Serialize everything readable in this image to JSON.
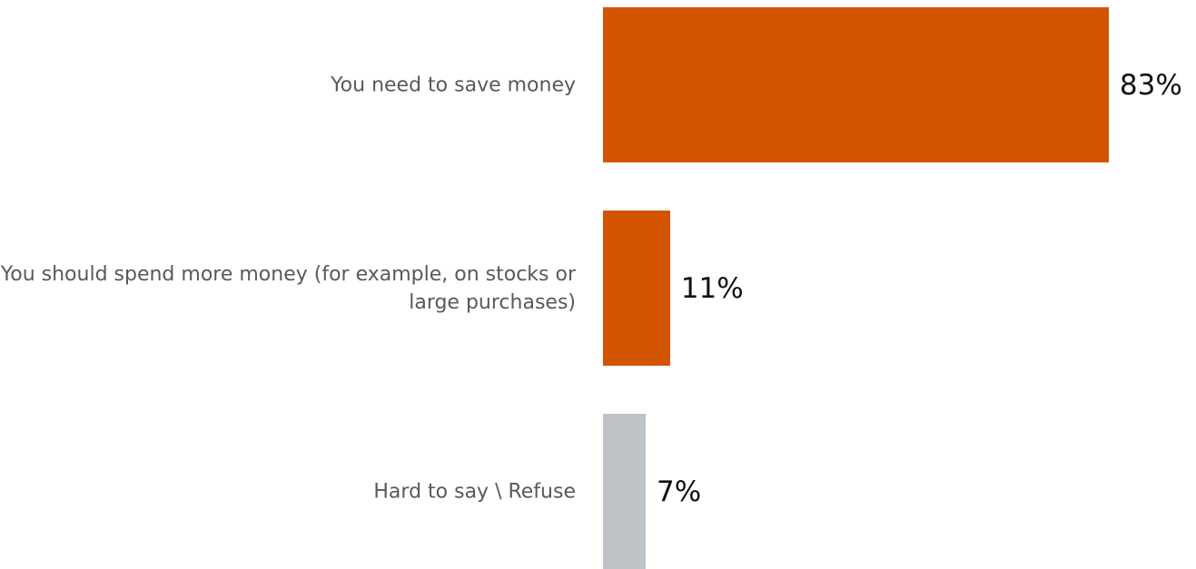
{
  "chart_data": {
    "type": "bar",
    "orientation": "horizontal",
    "categories": [
      "You need to save money",
      "You should spend more money (for example, on stocks or large purchases)",
      "Hard to say \\ Refuse"
    ],
    "values": [
      83,
      11,
      7
    ],
    "value_labels": [
      "83%",
      "11%",
      "7%"
    ],
    "bar_colors": [
      "#d35400",
      "#d35400",
      "#bdc3c7"
    ],
    "xlim": [
      0,
      100
    ],
    "title": "",
    "xlabel": "",
    "ylabel": "",
    "grid": false,
    "legend": "none"
  }
}
